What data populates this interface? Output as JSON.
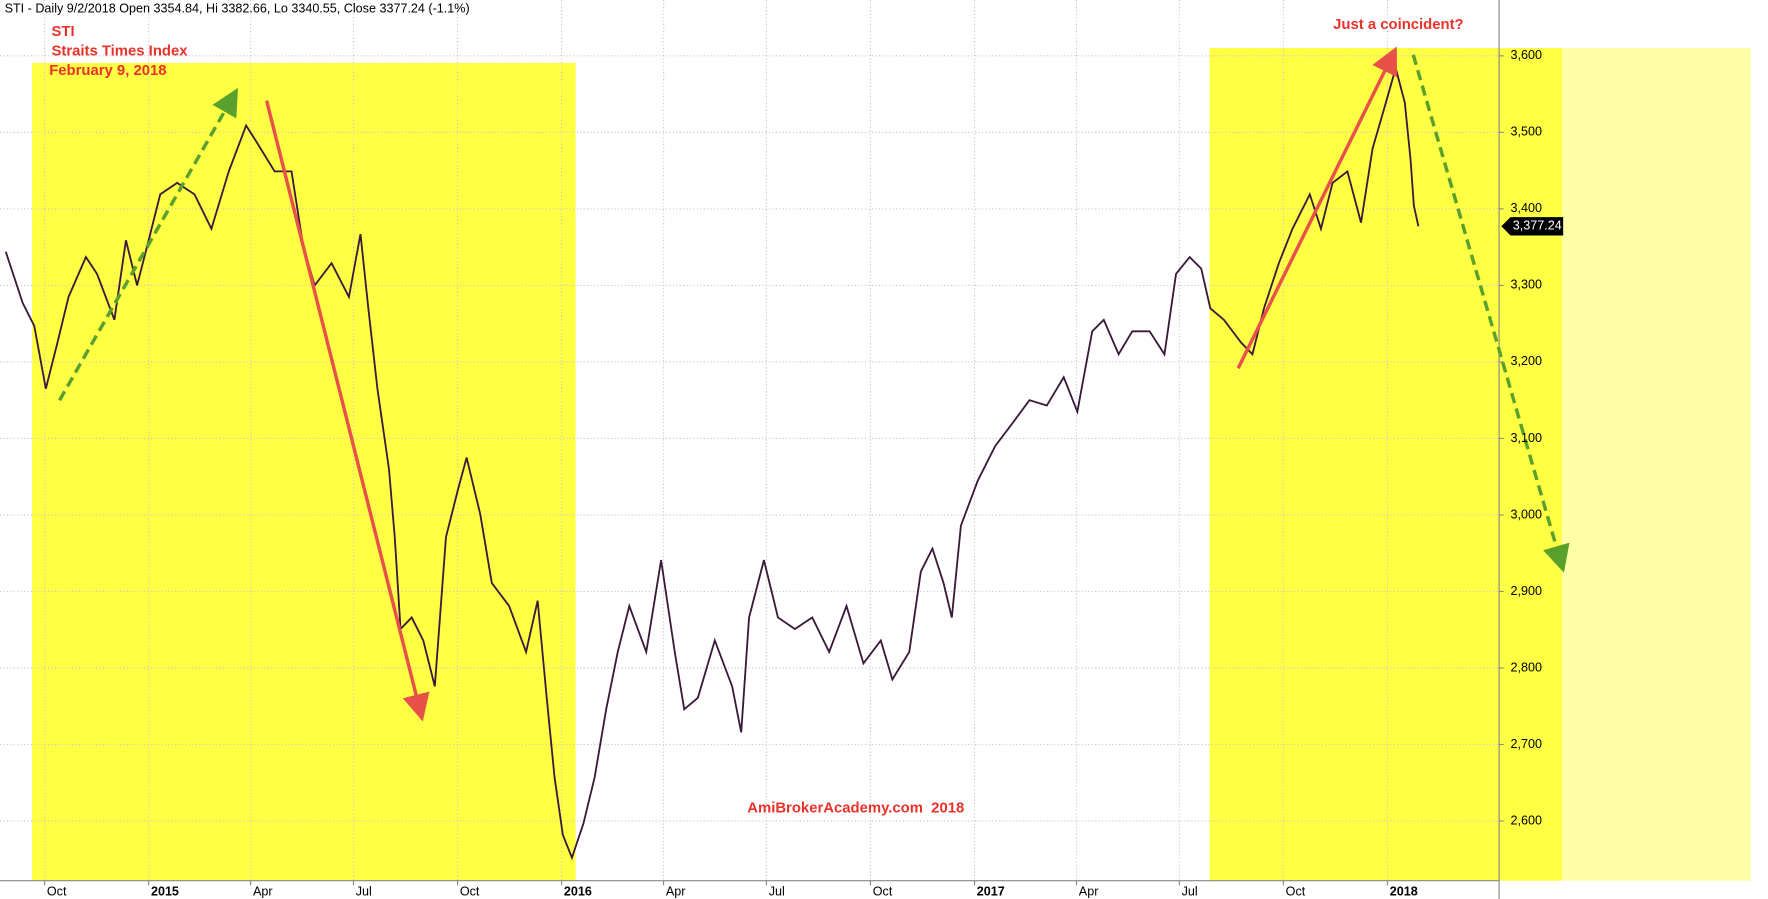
{
  "chart_data": {
    "type": "line",
    "title": "STI - Daily 9/2/2018 Open 3354.84, Hi 3382.66, Lo 3340.55, Close 3377.24 (-1.1%)",
    "subtitle": [
      "Straits Times Index",
      "February 9, 2018"
    ],
    "annotations": [
      "Just a coincident?",
      "AmiBrokerAcademy.com  2018"
    ],
    "last_label": "3,377.24",
    "x": [
      2014.654,
      2014.695,
      2014.723,
      2014.751,
      2014.779,
      2014.806,
      2014.848,
      2014.875,
      2014.917,
      2014.945,
      2014.972,
      2015.0,
      2015.028,
      2015.069,
      2015.111,
      2015.152,
      2015.194,
      2015.236,
      2015.263,
      2015.305,
      2015.346,
      2015.374,
      2015.402,
      2015.443,
      2015.485,
      2015.513,
      2015.532,
      2015.554,
      2015.582,
      2015.596,
      2015.61,
      2015.637,
      2015.665,
      2015.693,
      2015.72,
      2015.748,
      2015.77,
      2015.803,
      2015.831,
      2015.873,
      2015.914,
      2015.942,
      2015.964,
      2015.983,
      2016.003,
      2016.025,
      2016.053,
      2016.08,
      2016.108,
      2016.136,
      2016.164,
      2016.205,
      2016.241,
      2016.274,
      2016.297,
      2016.33,
      2016.371,
      2016.413,
      2016.435,
      2016.454,
      2016.49,
      2016.524,
      2016.565,
      2016.607,
      2016.648,
      2016.69,
      2016.731,
      2016.773,
      2016.801,
      2016.842,
      2016.87,
      2016.898,
      2016.925,
      2016.945,
      2016.967,
      2017.008,
      2017.05,
      2017.092,
      2017.133,
      2017.175,
      2017.216,
      2017.249,
      2017.285,
      2017.313,
      2017.349,
      2017.382,
      2017.424,
      2017.46,
      2017.488,
      2017.521,
      2017.549,
      2017.571,
      2017.604,
      2017.646,
      2017.673,
      2017.701,
      2017.737,
      2017.77,
      2017.812,
      2017.839,
      2017.867,
      2017.903,
      2017.936,
      2017.964,
      2017.992,
      2018.02,
      2018.042,
      2018.056,
      2018.064,
      2018.075
    ],
    "series": [
      {
        "name": "STI",
        "color": "#3a1a3a",
        "values": [
          3344,
          3277,
          3247,
          3165,
          3225,
          3285,
          3337,
          3315,
          3255,
          3359,
          3300,
          3359,
          3419,
          3434,
          3419,
          3374,
          3449,
          3509,
          3486,
          3449,
          3449,
          3352,
          3300,
          3329,
          3285,
          3367,
          3270,
          3165,
          3060,
          2971,
          2851,
          2866,
          2836,
          2776,
          2971,
          3031,
          3075,
          3001,
          2911,
          2881,
          2821,
          2888,
          2761,
          2657,
          2582,
          2552,
          2597,
          2657,
          2746,
          2821,
          2881,
          2821,
          2941,
          2821,
          2746,
          2761,
          2836,
          2776,
          2716,
          2866,
          2941,
          2866,
          2851,
          2866,
          2821,
          2881,
          2806,
          2836,
          2785,
          2821,
          2926,
          2956,
          2911,
          2866,
          2986,
          3045,
          3090,
          3120,
          3150,
          3143,
          3180,
          3135,
          3240,
          3255,
          3210,
          3240,
          3240,
          3210,
          3315,
          3337,
          3322,
          3270,
          3255,
          3225,
          3210,
          3270,
          3329,
          3374,
          3419,
          3374,
          3434,
          3449,
          3382,
          3479,
          3531,
          3584,
          3539,
          3464,
          3404,
          3377.24
        ]
      }
    ],
    "xlim": [
      2014.64,
      2018.88
    ],
    "xticks": [
      {
        "value": 2014.748,
        "label": "Oct"
      },
      2015,
      {
        "value": 2015.247,
        "label": "Apr"
      },
      {
        "value": 2015.496,
        "label": "Jul"
      },
      {
        "value": 2015.748,
        "label": "Oct"
      },
      2016,
      {
        "value": 2016.247,
        "label": "Apr"
      },
      {
        "value": 2016.496,
        "label": "Jul"
      },
      {
        "value": 2016.748,
        "label": "Oct"
      },
      2017,
      {
        "value": 2017.247,
        "label": "Apr"
      },
      {
        "value": 2017.496,
        "label": "Jul"
      },
      {
        "value": 2017.748,
        "label": "Oct"
      },
      2018
    ],
    "ylim": [
      2525,
      3673
    ],
    "yticks": [
      {
        "value": 2600,
        "label": "2,600"
      },
      {
        "value": 2700,
        "label": "2,700"
      },
      {
        "value": 2800,
        "label": "2,800"
      },
      {
        "value": 2900,
        "label": "2,900"
      },
      {
        "value": 3000,
        "label": "3,000"
      },
      {
        "value": 3100,
        "label": "3,100"
      },
      {
        "value": 3200,
        "label": "3,200"
      },
      {
        "value": 3300,
        "label": "3,300"
      },
      {
        "value": 3400,
        "label": "3,400"
      },
      {
        "value": 3500,
        "label": "3,500"
      },
      {
        "value": 3600,
        "label": "3,600"
      }
    ],
    "grid": true
  }
}
